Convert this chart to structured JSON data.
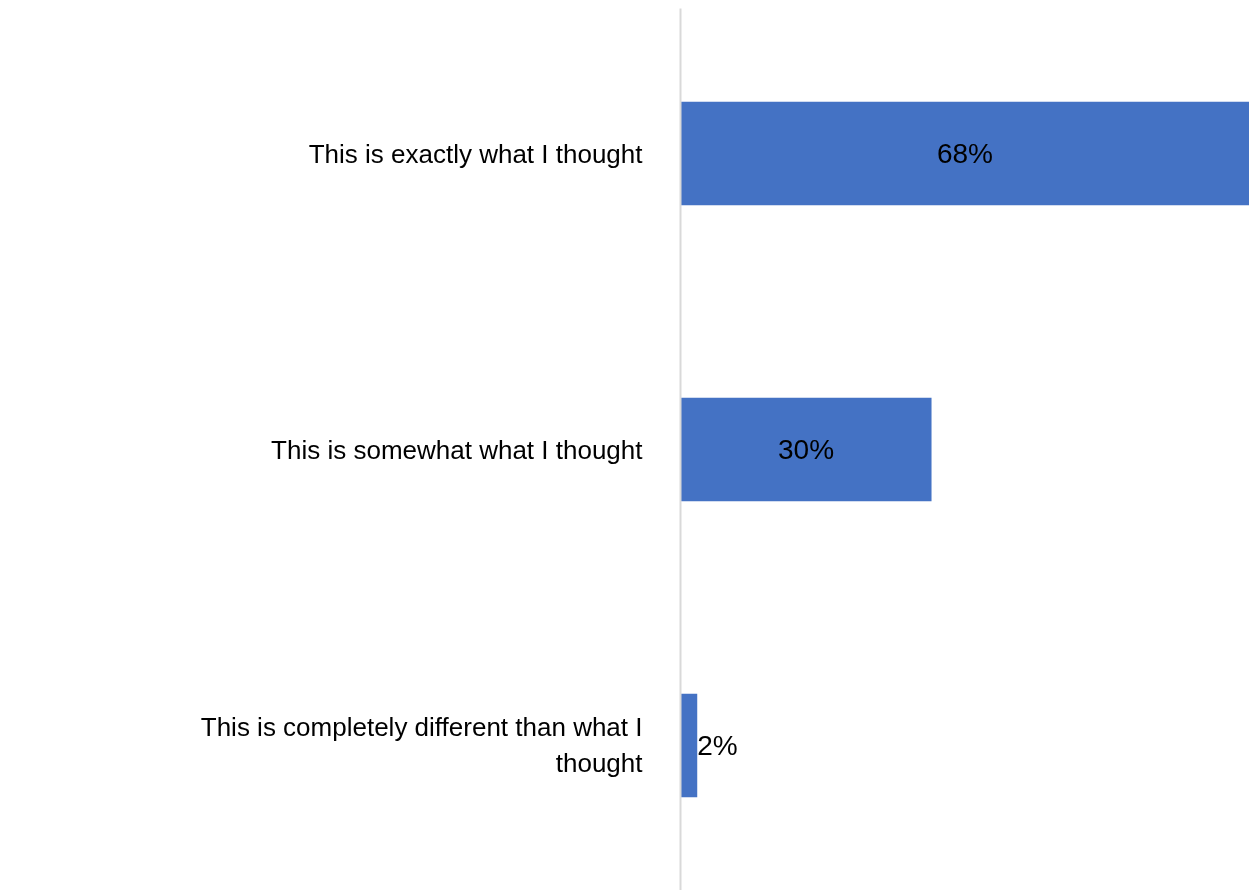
{
  "chart_data": {
    "type": "bar",
    "orientation": "horizontal",
    "categories": [
      "This is exactly what I thought",
      "This is somewhat what I thought",
      "This is completely different than what I thought"
    ],
    "values": [
      68,
      30,
      2
    ],
    "color": "#4472c4",
    "xlim": [
      0,
      68
    ],
    "data_labels": true,
    "value_labels": [
      "68%",
      "30%",
      "2%"
    ],
    "grid": false,
    "tick_labels": "y"
  }
}
